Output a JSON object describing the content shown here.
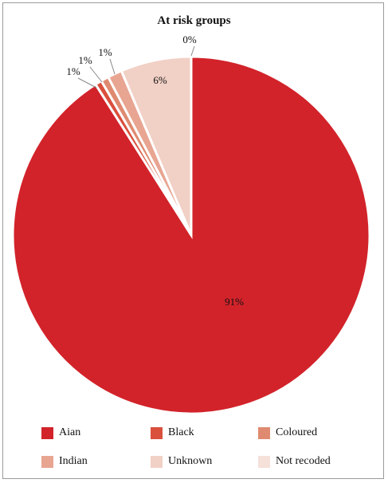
{
  "chart_data": {
    "type": "pie",
    "title": "At risk groups",
    "slices": [
      {
        "name": "Aian",
        "value": 91,
        "label": "91%",
        "color": "#d2232a"
      },
      {
        "name": "Black",
        "value": 0.6,
        "label": "1%",
        "color": "#d9503d"
      },
      {
        "name": "Coloured",
        "value": 0.7,
        "label": "1%",
        "color": "#df8a70"
      },
      {
        "name": "Indian",
        "value": 1.3,
        "label": "1%",
        "color": "#e8a592"
      },
      {
        "name": "Unknown",
        "value": 6.4,
        "label": "6%",
        "color": "#f1d0c5"
      },
      {
        "name": "Not recoded",
        "value": 0.0,
        "label": "0%",
        "color": "#f5e1da"
      }
    ],
    "legend_position": "bottom"
  }
}
